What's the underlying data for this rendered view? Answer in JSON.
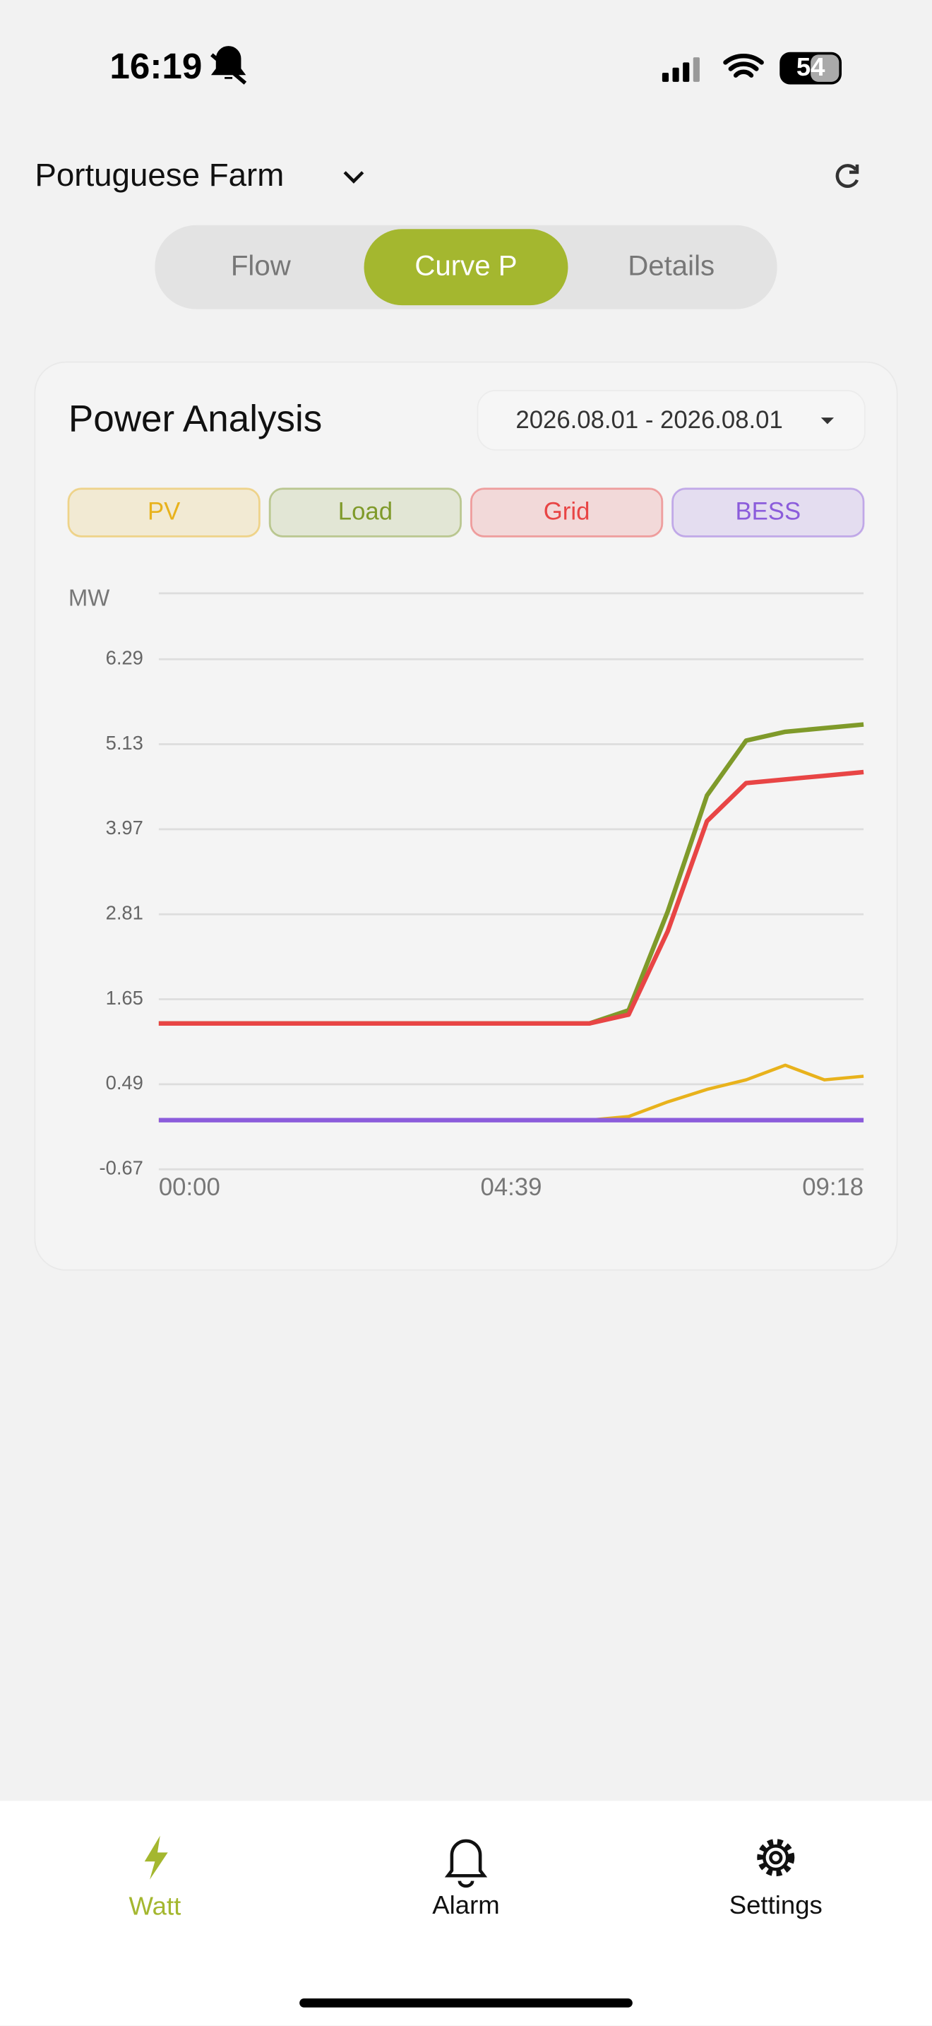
{
  "status_bar": {
    "time": "16:19",
    "battery": "54"
  },
  "header": {
    "site": "Portuguese Farm"
  },
  "tabs": [
    "Flow",
    "Curve P",
    "Details"
  ],
  "chart_data": {
    "type": "line",
    "title": "Power Analysis",
    "date_range": "2026.08.01 - 2026.08.01",
    "y_label": "MW",
    "x": [
      "00:00",
      "00:31",
      "01:02",
      "01:33",
      "02:04",
      "02:35",
      "03:06",
      "03:37",
      "04:08",
      "04:39",
      "05:10",
      "05:41",
      "06:12",
      "06:43",
      "07:14",
      "07:45",
      "08:16",
      "08:47",
      "09:18"
    ],
    "series": [
      {
        "name": "PV",
        "color": "#e8b21c",
        "values": [
          0,
          0,
          0,
          0,
          0,
          0,
          0,
          0,
          0,
          0,
          0,
          0,
          0.05,
          0.25,
          0.42,
          0.55,
          0.75,
          0.55,
          0.6
        ]
      },
      {
        "name": "Load",
        "color": "#7f9a2a",
        "values": [
          1.32,
          1.32,
          1.32,
          1.32,
          1.32,
          1.32,
          1.32,
          1.32,
          1.32,
          1.32,
          1.32,
          1.32,
          1.5,
          2.85,
          4.43,
          5.18,
          5.3,
          5.35,
          5.4
        ]
      },
      {
        "name": "Grid",
        "color": "#e84545",
        "values": [
          1.32,
          1.32,
          1.32,
          1.32,
          1.32,
          1.32,
          1.32,
          1.32,
          1.32,
          1.32,
          1.32,
          1.32,
          1.44,
          2.58,
          4.08,
          4.6,
          4.65,
          4.7,
          4.75
        ]
      },
      {
        "name": "BESS",
        "color": "#8b5cdb",
        "values": [
          0,
          0,
          0,
          0,
          0,
          0,
          0,
          0,
          0,
          0,
          0,
          0,
          0,
          0,
          0,
          0,
          0,
          0,
          0
        ]
      }
    ],
    "ylim": [
      -0.67,
      7.19
    ],
    "yticks": [
      -0.67,
      0.49,
      1.65,
      2.81,
      3.97,
      5.13,
      6.29
    ],
    "grid": true
  },
  "nav": [
    "Watt",
    "Alarm",
    "Settings"
  ]
}
